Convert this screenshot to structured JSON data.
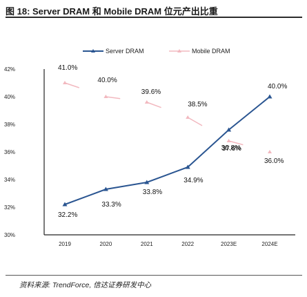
{
  "header": {
    "title": "图 18:  Server DRAM 和 Mobile DRAM 位元产出比重"
  },
  "footer": {
    "source": "资料来源:  TrendForce,  信达证券研发中心"
  },
  "chart_data": {
    "type": "line",
    "title": "图 18:  Server DRAM 和 Mobile DRAM 位元产出比重",
    "xlabel": "",
    "ylabel": "",
    "categories": [
      "2019",
      "2020",
      "2021",
      "2022",
      "2023E",
      "2024E"
    ],
    "y_ticks": [
      "42%",
      "40%",
      "38%",
      "36%",
      "34%",
      "32%",
      "30%"
    ],
    "ylim": [
      30,
      42
    ],
    "grid": false,
    "legend_position": "top-center",
    "series": [
      {
        "name": "Server DRAM",
        "color": "#2a5591",
        "values": [
          32.2,
          33.3,
          33.8,
          34.9,
          37.6,
          40.0
        ],
        "labels": [
          "32.2%",
          "33.3%",
          "33.8%",
          "34.9%",
          "37.6%",
          "40.0%"
        ]
      },
      {
        "name": "Mobile DRAM",
        "color": "#f2b8bf",
        "values": [
          41.0,
          40.0,
          39.6,
          38.5,
          36.8,
          36.0
        ],
        "labels": [
          "41.0%",
          "40.0%",
          "39.6%",
          "38.5%",
          "36.8%",
          "36.0%"
        ]
      }
    ]
  }
}
